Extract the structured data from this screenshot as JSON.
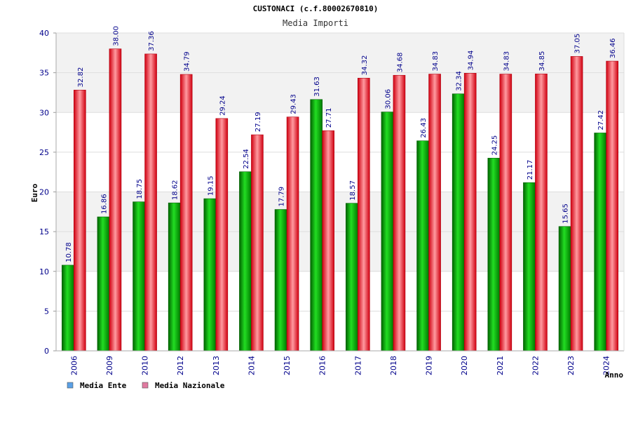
{
  "chart_data": {
    "type": "bar",
    "title": "CUSTONACI (c.f.80002670810)",
    "subtitle": "Media Importi",
    "xlabel": "Anno",
    "ylabel": "Euro",
    "ylim": [
      0,
      40
    ],
    "yticks": [
      "0",
      "5",
      "10",
      "15",
      "20",
      "25",
      "30",
      "35",
      "40"
    ],
    "grid": true,
    "legend_position": "bottom-left",
    "categories": [
      "2006",
      "2009",
      "2010",
      "2012",
      "2013",
      "2014",
      "2015",
      "2016",
      "2017",
      "2018",
      "2019",
      "2020",
      "2021",
      "2022",
      "2023",
      "2024"
    ],
    "series": [
      {
        "name": "Media Ente",
        "color": "#00a000",
        "legend_color": "#5aa0e6",
        "values": [
          10.78,
          16.86,
          18.75,
          18.62,
          19.15,
          22.54,
          17.79,
          31.63,
          18.57,
          30.06,
          26.43,
          32.34,
          24.25,
          21.17,
          15.65,
          27.42
        ],
        "labels": [
          "10.78",
          "16.86",
          "18.75",
          "18.62",
          "19.15",
          "22.54",
          "17.79",
          "31.63",
          "18.57",
          "30.06",
          "26.43",
          "32.34",
          "24.25",
          "21.17",
          "15.65",
          "27.42"
        ]
      },
      {
        "name": "Media Nazionale",
        "color": "#e0101a",
        "legend_color": "#e07aa0",
        "values": [
          32.82,
          38.0,
          37.36,
          34.79,
          29.24,
          27.19,
          29.43,
          27.71,
          34.32,
          34.68,
          34.83,
          34.94,
          34.83,
          34.85,
          37.05,
          36.46
        ],
        "labels": [
          "32.82",
          "38.00",
          "37.36",
          "34.79",
          "29.24",
          "27.19",
          "29.43",
          "27.71",
          "34.32",
          "34.68",
          "34.83",
          "34.94",
          "34.83",
          "34.85",
          "37.05",
          "36.46"
        ]
      }
    ]
  }
}
